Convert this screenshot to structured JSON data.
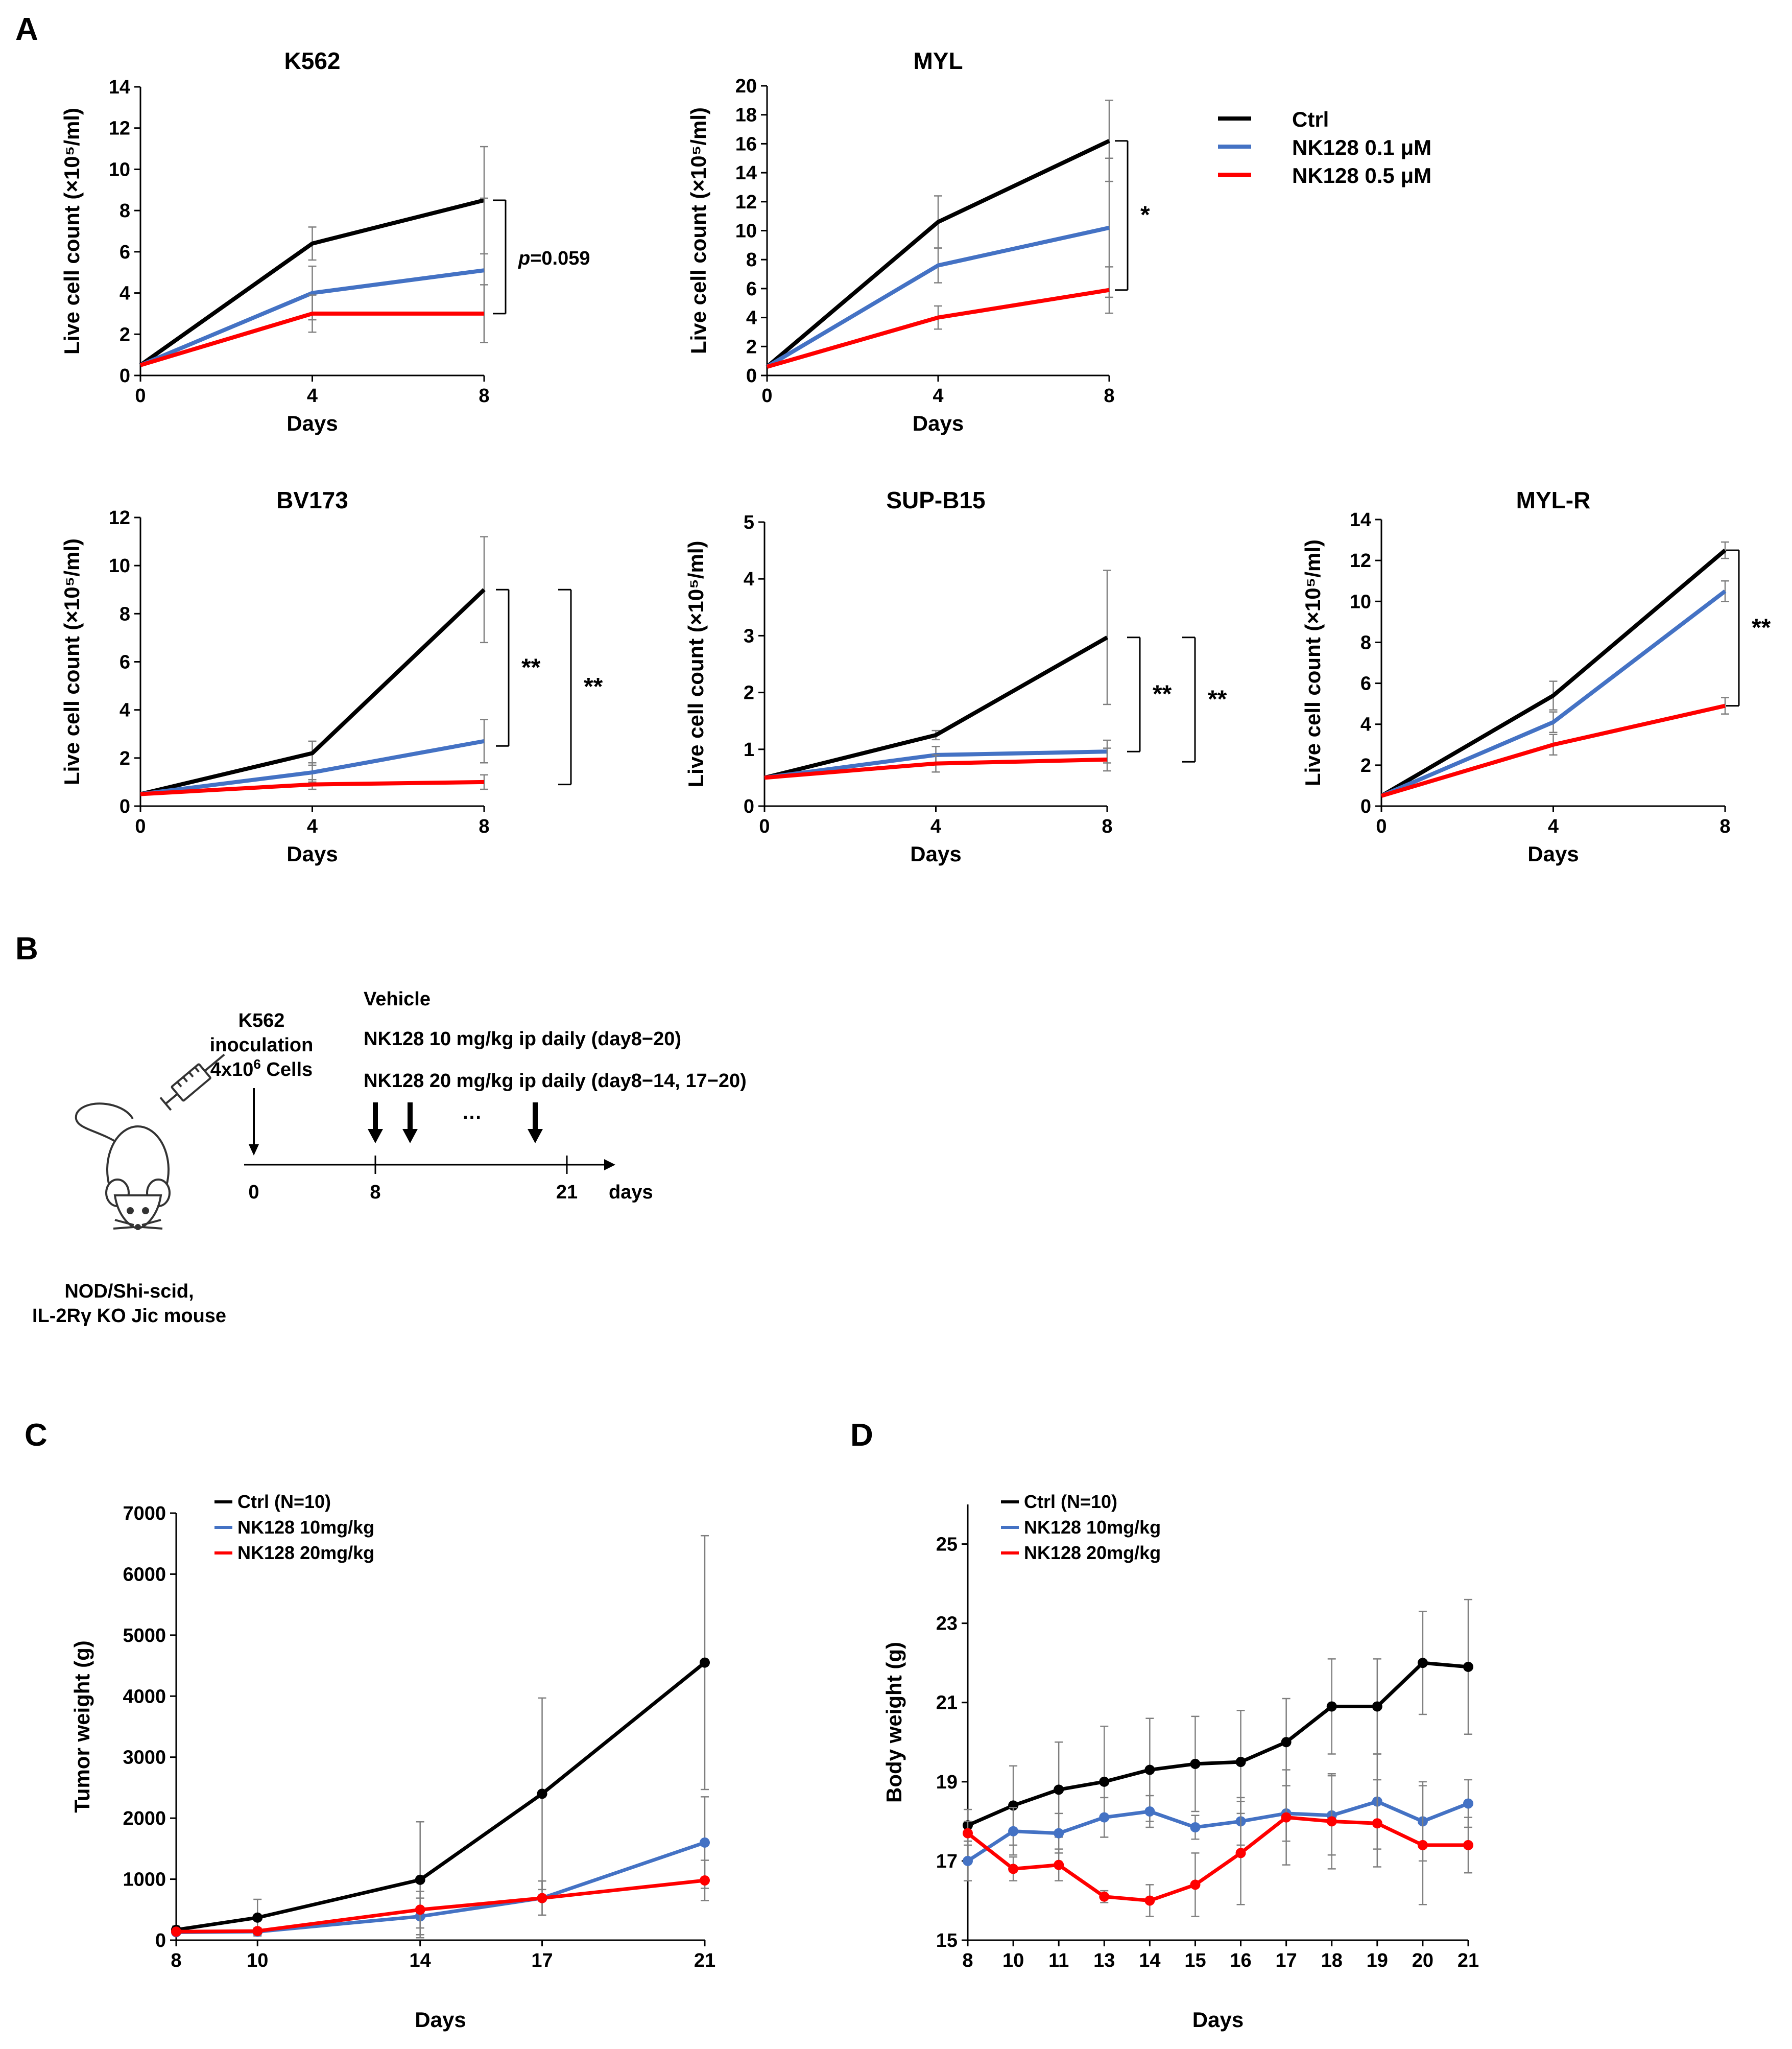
{
  "panels": {
    "A": "A",
    "B": "B",
    "C": "C",
    "D": "D"
  },
  "colors": {
    "ctrl": "#000000",
    "low": "#4472C4",
    "high": "#FF0000",
    "axis": "#000000",
    "err": "#7f7f7f"
  },
  "legend_A": {
    "items": [
      {
        "label": "Ctrl",
        "color": "#000000"
      },
      {
        "label": "NK128 0.1 μM",
        "color": "#4472C4"
      },
      {
        "label": "NK128 0.5 μM",
        "color": "#FF0000"
      }
    ]
  },
  "schematic": {
    "k562": "K562",
    "inoculation": "inoculation",
    "cells_prefix": "4x10",
    "cells_sup": "6",
    "cells_suffix": " Cells",
    "vehicle": "Vehicle",
    "dose10": "NK128 10 mg/kg ip daily (day8−20)",
    "dose20": "NK128 20 mg/kg ip daily (day8−14, 17−20)",
    "ellipsis": "···",
    "tick0": "0",
    "tick8": "8",
    "tick21": "21",
    "days": "days",
    "mouse_line1": "NOD/Shi-scid,",
    "mouse_line2": "IL-2Rγ KO Jic mouse"
  },
  "chart_data": [
    {
      "id": "k562",
      "panel": "A",
      "type": "line",
      "title": "K562",
      "xlabel": "Days",
      "ylabel": "Live cell count (×10⁵/ml)",
      "x": [
        0,
        4,
        8
      ],
      "xlim": [
        0,
        8
      ],
      "xticks": [
        0,
        4,
        8
      ],
      "ylim": [
        0,
        14
      ],
      "yticks": [
        0,
        2,
        4,
        6,
        8,
        10,
        12,
        14
      ],
      "series": [
        {
          "name": "Ctrl",
          "values": [
            0.5,
            6.4,
            8.5
          ],
          "err": [
            0,
            0.8,
            2.6
          ]
        },
        {
          "name": "NK128 0.1 μM",
          "values": [
            0.5,
            4.0,
            5.1
          ],
          "err": [
            0,
            1.3,
            3.5
          ]
        },
        {
          "name": "NK128 0.5 μM",
          "values": [
            0.5,
            3.0,
            3.0
          ],
          "err": [
            0,
            0.9,
            1.4
          ]
        }
      ],
      "significance": [
        {
          "label": "p=0.059",
          "from": 8.5,
          "to": 3.0
        }
      ]
    },
    {
      "id": "myl",
      "panel": "A",
      "type": "line",
      "title": "MYL",
      "xlabel": "Days",
      "ylabel": "Live cell count (×10⁵/ml)",
      "x": [
        0,
        4,
        8
      ],
      "xlim": [
        0,
        8
      ],
      "xticks": [
        0,
        4,
        8
      ],
      "ylim": [
        0,
        20
      ],
      "yticks": [
        0,
        2,
        4,
        6,
        8,
        10,
        12,
        14,
        16,
        18,
        20
      ],
      "series": [
        {
          "name": "Ctrl",
          "values": [
            0.6,
            10.6,
            16.2
          ],
          "err": [
            0,
            1.8,
            2.8
          ]
        },
        {
          "name": "NK128 0.1 μM",
          "values": [
            0.6,
            7.6,
            10.2
          ],
          "err": [
            0,
            1.2,
            4.8
          ]
        },
        {
          "name": "NK128 0.5 μM",
          "values": [
            0.6,
            4.0,
            5.9
          ],
          "err": [
            0,
            0.8,
            1.6
          ]
        }
      ],
      "significance": [
        {
          "label": "*",
          "from": 16.2,
          "to": 5.9
        }
      ]
    },
    {
      "id": "bv173",
      "panel": "A",
      "type": "line",
      "title": "BV173",
      "xlabel": "Days",
      "ylabel": "Live cell count (×10⁵/ml)",
      "x": [
        0,
        4,
        8
      ],
      "xlim": [
        0,
        8
      ],
      "xticks": [
        0,
        4,
        8
      ],
      "ylim": [
        0,
        12
      ],
      "yticks": [
        0,
        2,
        4,
        6,
        8,
        10,
        12
      ],
      "series": [
        {
          "name": "Ctrl",
          "values": [
            0.5,
            2.2,
            9.0
          ],
          "err": [
            0,
            0.5,
            2.2
          ]
        },
        {
          "name": "NK128 0.1 μM",
          "values": [
            0.5,
            1.4,
            2.7
          ],
          "err": [
            0,
            0.4,
            0.9
          ]
        },
        {
          "name": "NK128 0.5 μM",
          "values": [
            0.5,
            0.9,
            1.0
          ],
          "err": [
            0,
            0.2,
            0.3
          ]
        }
      ],
      "significance": [
        {
          "label": "**",
          "from": 9.0,
          "to": 2.5
        },
        {
          "label": "**",
          "from": 9.0,
          "to": 0.9
        }
      ]
    },
    {
      "id": "supb15",
      "panel": "A",
      "type": "line",
      "title": "SUP-B15",
      "xlabel": "Days",
      "ylabel": "Live cell count (×10⁵/ml)",
      "x": [
        0,
        4,
        8
      ],
      "xlim": [
        0,
        8
      ],
      "xticks": [
        0,
        4,
        8
      ],
      "ylim": [
        0,
        5
      ],
      "yticks": [
        0,
        1,
        2,
        3,
        4,
        5
      ],
      "series": [
        {
          "name": "Ctrl",
          "values": [
            0.5,
            1.25,
            2.97
          ],
          "err": [
            0,
            0.08,
            1.18
          ]
        },
        {
          "name": "NK128 0.1 μM",
          "values": [
            0.5,
            0.9,
            0.96
          ],
          "err": [
            0,
            0.15,
            0.2
          ]
        },
        {
          "name": "NK128 0.5 μM",
          "values": [
            0.5,
            0.75,
            0.82
          ],
          "err": [
            0,
            0.15,
            0.2
          ]
        }
      ],
      "significance": [
        {
          "label": "**",
          "from": 2.97,
          "to": 0.96
        },
        {
          "label": "**",
          "from": 2.97,
          "to": 0.78
        }
      ]
    },
    {
      "id": "mylr",
      "panel": "A",
      "type": "line",
      "title": "MYL-R",
      "xlabel": "Days",
      "ylabel": "Live cell count (×10⁵/ml)",
      "x": [
        0,
        4,
        8
      ],
      "xlim": [
        0,
        8
      ],
      "xticks": [
        0,
        4,
        8
      ],
      "ylim": [
        0,
        14
      ],
      "yticks": [
        0,
        2,
        4,
        6,
        8,
        10,
        12,
        14
      ],
      "series": [
        {
          "name": "Ctrl",
          "values": [
            0.5,
            5.4,
            12.5
          ],
          "err": [
            0,
            0.7,
            0.4
          ]
        },
        {
          "name": "NK128 0.1 μM",
          "values": [
            0.5,
            4.1,
            10.5
          ],
          "err": [
            0,
            0.5,
            0.5
          ]
        },
        {
          "name": "NK128 0.5 μM",
          "values": [
            0.5,
            3.0,
            4.9
          ],
          "err": [
            0,
            0.5,
            0.4
          ]
        }
      ],
      "significance": [
        {
          "label": "**",
          "from": 12.5,
          "to": 4.9
        }
      ]
    },
    {
      "id": "tumor",
      "panel": "C",
      "type": "line",
      "title": "",
      "xlabel": "Days",
      "ylabel": "Tumor weight (g)",
      "x": [
        8,
        10,
        14,
        17,
        21
      ],
      "xlim": [
        8,
        21
      ],
      "xticks": [
        8,
        10,
        14,
        17,
        21
      ],
      "ylim": [
        0,
        7000
      ],
      "yticks": [
        0,
        1000,
        2000,
        3000,
        4000,
        5000,
        6000,
        7000
      ],
      "markers": true,
      "legend": [
        "Ctrl (N=10)",
        "NK128 10mg/kg",
        "NK128 20mg/kg"
      ],
      "series": [
        {
          "name": "Ctrl (N=10)",
          "values": [
            170,
            370,
            990,
            2400,
            4550
          ],
          "err": [
            60,
            300,
            950,
            1570,
            2080
          ]
        },
        {
          "name": "NK128 10mg/kg",
          "values": [
            130,
            140,
            390,
            690,
            1600
          ],
          "err": [
            40,
            50,
            300,
            280,
            750
          ]
        },
        {
          "name": "NK128 20mg/kg",
          "values": [
            140,
            150,
            500,
            690,
            980
          ],
          "err": [
            40,
            50,
            300,
            280,
            330
          ]
        }
      ]
    },
    {
      "id": "body",
      "panel": "D",
      "type": "line",
      "title": "",
      "xlabel": "Days",
      "ylabel": "Body weight (g)",
      "x": [
        8,
        10,
        11,
        13,
        14,
        15,
        16,
        17,
        18,
        19,
        20,
        21
      ],
      "xticks": [
        8,
        10,
        11,
        13,
        14,
        15,
        16,
        17,
        18,
        19,
        20,
        21
      ],
      "categorical_x": true,
      "ylim": [
        15,
        26
      ],
      "yticks": [
        15,
        17,
        19,
        21,
        23,
        25
      ],
      "markers": true,
      "legend": [
        "Ctrl (N=10)",
        "NK128 10mg/kg",
        "NK128 20mg/kg"
      ],
      "series": [
        {
          "name": "Ctrl (N=10)",
          "values": [
            17.9,
            18.4,
            18.8,
            19.0,
            19.3,
            19.45,
            19.5,
            20.0,
            20.9,
            20.9,
            22.0,
            21.9
          ],
          "err": [
            0.4,
            1.0,
            1.2,
            1.4,
            1.3,
            1.2,
            1.3,
            1.1,
            1.2,
            1.2,
            1.3,
            1.7
          ]
        },
        {
          "name": "NK128 10mg/kg",
          "values": [
            17.0,
            17.75,
            17.7,
            18.1,
            18.25,
            17.85,
            18.0,
            18.2,
            18.15,
            18.5,
            18.0,
            18.45
          ],
          "err": [
            0.5,
            0.6,
            0.5,
            0.5,
            0.4,
            0.3,
            0.6,
            0.7,
            1.0,
            1.2,
            1.0,
            0.6
          ]
        },
        {
          "name": "NK128 20mg/kg",
          "values": [
            17.7,
            16.8,
            16.9,
            16.1,
            16.0,
            16.4,
            17.2,
            18.1,
            18.0,
            17.95,
            17.4,
            17.4
          ],
          "err": [
            0.3,
            0.3,
            0.4,
            0.15,
            0.4,
            0.8,
            1.3,
            1.2,
            1.2,
            1.1,
            1.5,
            0.7
          ]
        }
      ]
    }
  ]
}
